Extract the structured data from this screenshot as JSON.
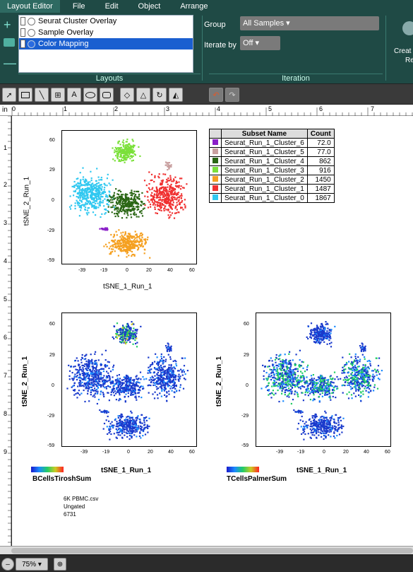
{
  "menu": [
    "Layout Editor",
    "File",
    "Edit",
    "Object",
    "Arrange"
  ],
  "ribbon": {
    "layouts": [
      "Seurat Cluster Overlay",
      "Sample Overlay",
      "Color Mapping"
    ],
    "selected_layout": 2,
    "layouts_label": "Layouts",
    "group_label": "Group",
    "group_value": "All Samples",
    "iterate_label": "Iterate by",
    "iterate_value": "Off",
    "iteration_label": "Iteration",
    "create_label_1": "Creat",
    "create_label_2": "Re"
  },
  "toolbar": {
    "tools": [
      "arrow-select",
      "rectangle",
      "line",
      "table",
      "text",
      "ellipse",
      "rounded-rectangle",
      "diamond",
      "triangle",
      "circle-arrow",
      "triangle-filled"
    ],
    "undo": "undo-icon",
    "redo": "redo-icon"
  },
  "rulers": {
    "unit": "in",
    "top": [
      "0",
      "1",
      "2",
      "3",
      "4",
      "5",
      "6",
      "7"
    ],
    "left": [
      "1",
      "2",
      "3",
      "4",
      "5",
      "6",
      "7",
      "8",
      "9"
    ]
  },
  "cluster_plot": {
    "xlabel": "tSNE_1_Run_1",
    "ylabel": "tSNE_2_Run_1",
    "xticks": [
      "-39",
      "-19",
      "0",
      "20",
      "40",
      "60"
    ],
    "yticks": [
      "60",
      "29",
      "0",
      "-29",
      "-59"
    ]
  },
  "table": {
    "headers": [
      "Subset Name",
      "Count"
    ],
    "rows": [
      {
        "name": "Seurat_Run_1_Cluster_6",
        "count": "72.0",
        "color": "#8a1fc8"
      },
      {
        "name": "Seurat_Run_1_Cluster_5",
        "count": "77.0",
        "color": "#c9a0a0"
      },
      {
        "name": "Seurat_Run_1_Cluster_4",
        "count": "862",
        "color": "#2a6614"
      },
      {
        "name": "Seurat_Run_1_Cluster_3",
        "count": "916",
        "color": "#7be03a"
      },
      {
        "name": "Seurat_Run_1_Cluster_2",
        "count": "1450",
        "color": "#f5a020"
      },
      {
        "name": "Seurat_Run_1_Cluster_1",
        "count": "1487",
        "color": "#f03030"
      },
      {
        "name": "Seurat_Run_1_Cluster_0",
        "count": "1867",
        "color": "#30c8f0"
      }
    ]
  },
  "heat_plots": [
    {
      "xlabel": "tSNE_1_Run_1",
      "ylabel": "tSNE_2_Run_1",
      "scale_label": "BCellsTiroshSum"
    },
    {
      "xlabel": "tSNE_1_Run_1",
      "ylabel": "tSNE_2_Run_1",
      "scale_label": "TCellsPalmerSum"
    }
  ],
  "heat_ticks": {
    "xticks": [
      "-39",
      "-19",
      "0",
      "20",
      "40",
      "60"
    ],
    "yticks": [
      "60",
      "29",
      "0",
      "-29",
      "-59"
    ]
  },
  "footer": [
    "6K PBMC.csv",
    "Ungated",
    "6731"
  ],
  "status": {
    "zoom": "75%"
  }
}
